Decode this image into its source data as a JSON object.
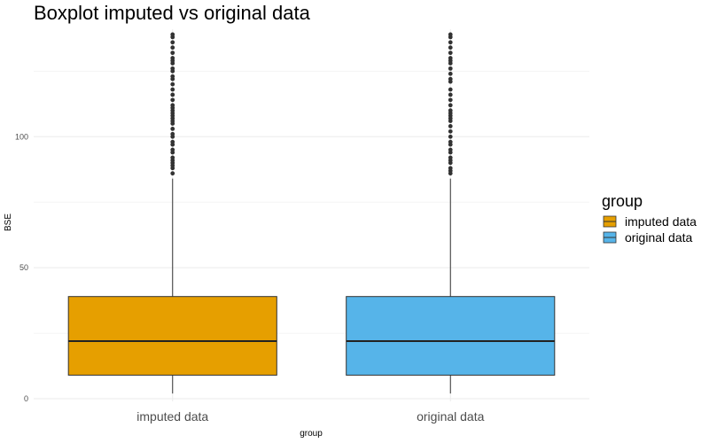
{
  "chart_data": {
    "type": "boxplot",
    "title": "Boxplot imputed vs original data",
    "xlabel": "group",
    "ylabel": "BSE",
    "ylim": [
      -1,
      141
    ],
    "yticks": [
      0,
      50,
      100
    ],
    "grid": true,
    "legend": {
      "title": "group",
      "placement": "right",
      "entries": [
        "imputed data",
        "original data"
      ]
    },
    "series": [
      {
        "name": "imputed data",
        "color": "#E69F00",
        "min": 2,
        "q1": 9,
        "median": 22,
        "q3": 39,
        "whisker_high": 84,
        "outliers": [
          86,
          88,
          89,
          90,
          91,
          92,
          94,
          95,
          97,
          98,
          100,
          101,
          103,
          105,
          106,
          107,
          108,
          109,
          110,
          111,
          112,
          114,
          116,
          118,
          120,
          122,
          123,
          125,
          126,
          128,
          129,
          130,
          132,
          134,
          136,
          138,
          139
        ]
      },
      {
        "name": "original data",
        "color": "#56B4E9",
        "min": 2,
        "q1": 9,
        "median": 22,
        "q3": 39,
        "whisker_high": 84,
        "outliers": [
          86,
          87,
          88,
          90,
          91,
          92,
          94,
          95,
          97,
          98,
          100,
          102,
          104,
          106,
          107,
          108,
          109,
          110,
          112,
          114,
          116,
          118,
          121,
          122,
          124,
          126,
          128,
          129,
          130,
          132,
          134,
          136,
          138,
          139
        ]
      }
    ]
  }
}
